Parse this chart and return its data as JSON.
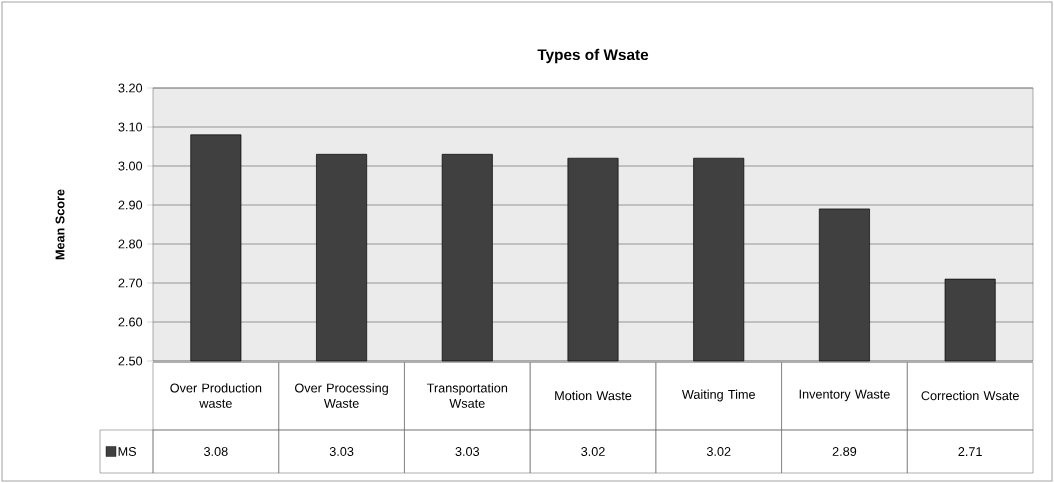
{
  "chart_data": {
    "type": "bar",
    "title": "Types of Wsate",
    "ylabel": "Mean Score",
    "categories": [
      "Over Production waste",
      "Over Processing Waste",
      "Transportation Wsate",
      "Motion Waste",
      "Waiting Time",
      "Inventory Waste",
      "Correction Wsate"
    ],
    "series": [
      {
        "name": "MS",
        "color": "#404040",
        "values": [
          3.08,
          3.03,
          3.03,
          3.02,
          3.02,
          2.89,
          2.71
        ]
      }
    ],
    "ylim": [
      2.5,
      3.2
    ],
    "yticks": [
      {
        "value": 2.5,
        "label": "2.50"
      },
      {
        "value": 2.6,
        "label": "2.60"
      },
      {
        "value": 2.7,
        "label": "2.70"
      },
      {
        "value": 2.8,
        "label": "2.80"
      },
      {
        "value": 2.9,
        "label": "2.90"
      },
      {
        "value": 3.0,
        "label": "3.00"
      },
      {
        "value": 3.1,
        "label": "3.10"
      },
      {
        "value": 3.2,
        "label": "3.20"
      }
    ],
    "grid": "y",
    "legend": "bottom",
    "data_labels": true
  }
}
